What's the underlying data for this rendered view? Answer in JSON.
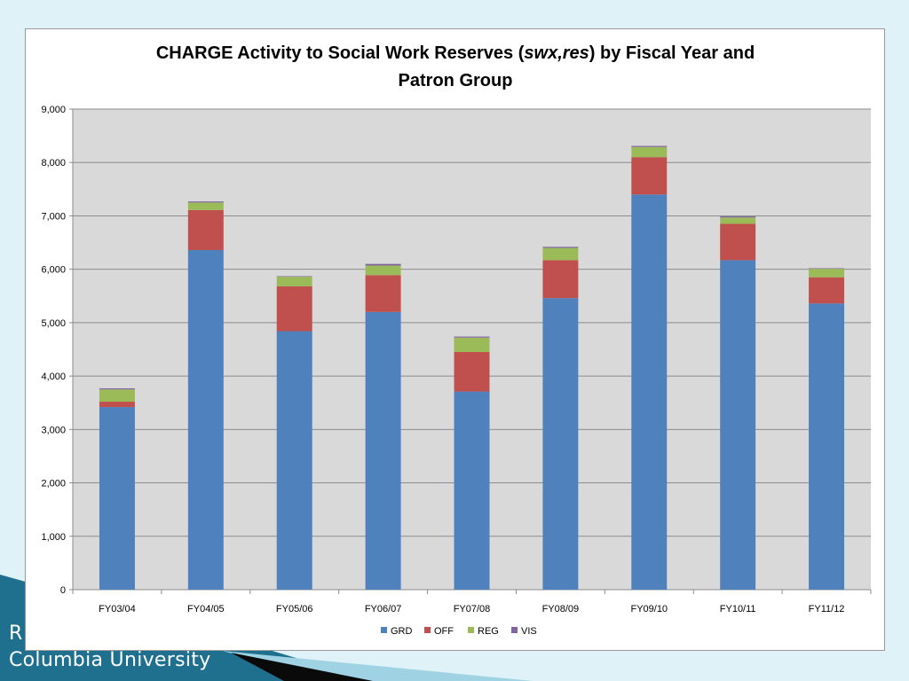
{
  "footer": {
    "line1": "R",
    "line2": "Columbia University"
  },
  "colors": {
    "background": "#dff2f8",
    "plot_area": "#d9d9d9",
    "footer_band": "#1f6f8f"
  },
  "chart_data": {
    "type": "bar",
    "stacked": true,
    "title_parts": [
      {
        "text": "CHARGE Activity to Social Work Reserves (",
        "italic": false
      },
      {
        "text": "swx,res",
        "italic": true
      },
      {
        "text": ")  by Fiscal Year and",
        "italic": false
      }
    ],
    "title_line2": "Patron Group",
    "categories": [
      "FY03/04",
      "FY04/05",
      "FY05/06",
      "FY06/07",
      "FY07/08",
      "FY08/09",
      "FY09/10",
      "FY10/11",
      "FY11/12"
    ],
    "series": [
      {
        "name": "GRD",
        "color": "#4f81bd",
        "values": [
          3420,
          6360,
          4840,
          5200,
          3710,
          5460,
          7400,
          6170,
          5360
        ]
      },
      {
        "name": "OFF",
        "color": "#c0504d",
        "values": [
          100,
          750,
          840,
          690,
          740,
          710,
          700,
          680,
          490
        ]
      },
      {
        "name": "REG",
        "color": "#9bbb59",
        "values": [
          230,
          140,
          180,
          180,
          270,
          230,
          190,
          120,
          160
        ]
      },
      {
        "name": "VIS",
        "color": "#8064a2",
        "values": [
          20,
          20,
          10,
          30,
          20,
          20,
          20,
          20,
          10
        ]
      }
    ],
    "ylim": [
      0,
      9000
    ],
    "yticks": [
      0,
      1000,
      2000,
      3000,
      4000,
      5000,
      6000,
      7000,
      8000,
      9000
    ],
    "ytick_labels": [
      "0",
      "1,000",
      "2,000",
      "3,000",
      "4,000",
      "5,000",
      "6,000",
      "7,000",
      "8,000",
      "9,000"
    ],
    "grid": true,
    "legend_position": "bottom"
  }
}
